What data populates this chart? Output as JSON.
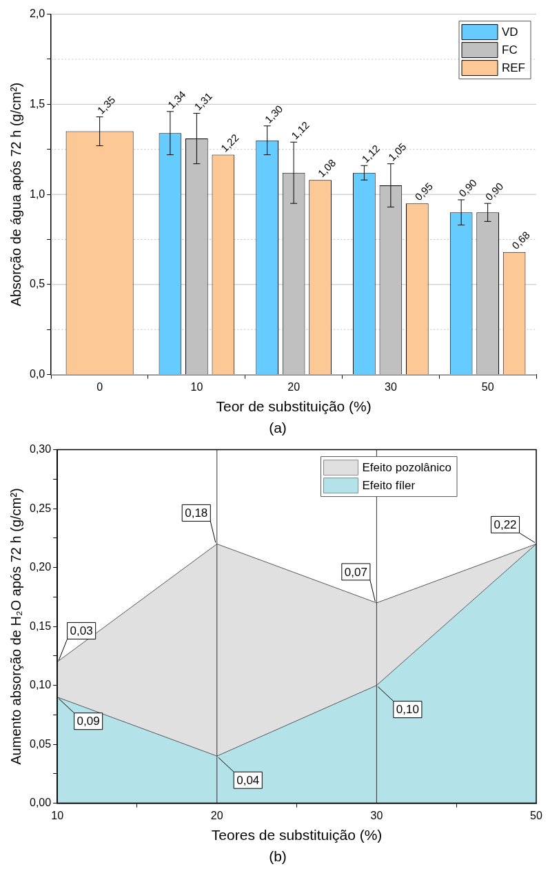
{
  "chart_data": [
    {
      "type": "bar",
      "xlabel": "Teor de substituição (%)",
      "ylabel": "Absorção de água após 72 h (g/cm²)",
      "annotations": [
        "(a)"
      ],
      "categories": [
        "0",
        "10",
        "20",
        "30",
        "50"
      ],
      "series": [
        {
          "name": "VD",
          "color": "#66ccff",
          "values": [
            null,
            1.34,
            1.3,
            1.12,
            0.9
          ],
          "errors": [
            null,
            0.12,
            0.08,
            0.04,
            0.07
          ],
          "value_labels": [
            null,
            "1,34",
            "1,30",
            "1,12",
            "0,90"
          ]
        },
        {
          "name": "FC",
          "color": "#c0c0c0",
          "values": [
            null,
            1.31,
            1.12,
            1.05,
            0.9
          ],
          "errors": [
            null,
            0.14,
            0.17,
            0.12,
            0.05
          ],
          "value_labels": [
            null,
            "1,31",
            "1,12",
            "1,05",
            "0,90"
          ]
        },
        {
          "name": "REF",
          "color": "#fbc896",
          "values": [
            1.35,
            1.22,
            1.08,
            0.95,
            0.68
          ],
          "errors": [
            0.08,
            null,
            null,
            null,
            null
          ],
          "value_labels": [
            "1,35",
            "1,22",
            "1,08",
            "0,95",
            "0,68"
          ]
        }
      ],
      "ylim": [
        0,
        2
      ],
      "yticks": [
        {
          "value": 0,
          "label": "0,0"
        },
        {
          "value": 0.25,
          "label": null
        },
        {
          "value": 0.5,
          "label": "0,5"
        },
        {
          "value": 0.75,
          "label": null
        },
        {
          "value": 1,
          "label": "1,0"
        },
        {
          "value": 1.25,
          "label": null
        },
        {
          "value": 1.5,
          "label": "1,5"
        },
        {
          "value": 1.75,
          "label": null
        },
        {
          "value": 2,
          "label": "2,0"
        }
      ],
      "grid": "y",
      "legend": "top right"
    },
    {
      "type": "area",
      "stacked": true,
      "xlabel": "Teores de substituição (%)",
      "ylabel": "Aumento absorção de H₂O após 72 h (g/cm²)",
      "categories": [
        "10",
        "20",
        "30",
        "50"
      ],
      "series": [
        {
          "name": "Efeito fíler",
          "color": "#b3e3e9",
          "values": [
            0.09,
            0.04,
            0.1,
            0.22
          ]
        },
        {
          "name": "Efeito pozolânico",
          "color": "#e0e0e0",
          "values": [
            0.03,
            0.18,
            0.07,
            0.0
          ]
        }
      ],
      "annotations": [
        {
          "text": "0,03",
          "x": "10",
          "y": 0.12
        },
        {
          "text": "0,09",
          "x": "10",
          "y": 0.09
        },
        {
          "text": "0,18",
          "x": "20",
          "y": 0.22
        },
        {
          "text": "0,04",
          "x": "20",
          "y": 0.04
        },
        {
          "text": "0,07",
          "x": "30",
          "y": 0.17
        },
        {
          "text": "0,10",
          "x": "30",
          "y": 0.1
        },
        {
          "text": "0,22",
          "x": "50",
          "y": 0.22
        },
        "(b)"
      ],
      "ref_lines": [
        {
          "axis": "x",
          "value": "20",
          "color": "#333333"
        },
        {
          "axis": "x",
          "value": "30",
          "color": "#333333"
        }
      ],
      "ylim": [
        0,
        0.3
      ],
      "yticks": [
        {
          "value": 0,
          "label": "0,00"
        },
        {
          "value": 0.025,
          "label": null
        },
        {
          "value": 0.05,
          "label": "0,05"
        },
        {
          "value": 0.075,
          "label": null
        },
        {
          "value": 0.1,
          "label": "0,10"
        },
        {
          "value": 0.125,
          "label": null
        },
        {
          "value": 0.15,
          "label": "0,15"
        },
        {
          "value": 0.175,
          "label": null
        },
        {
          "value": 0.2,
          "label": "0,20"
        },
        {
          "value": 0.225,
          "label": null
        },
        {
          "value": 0.25,
          "label": "0,25"
        },
        {
          "value": 0.275,
          "label": null
        },
        {
          "value": 0.3,
          "label": "0,30"
        }
      ],
      "grid": false,
      "legend": "top right"
    }
  ]
}
